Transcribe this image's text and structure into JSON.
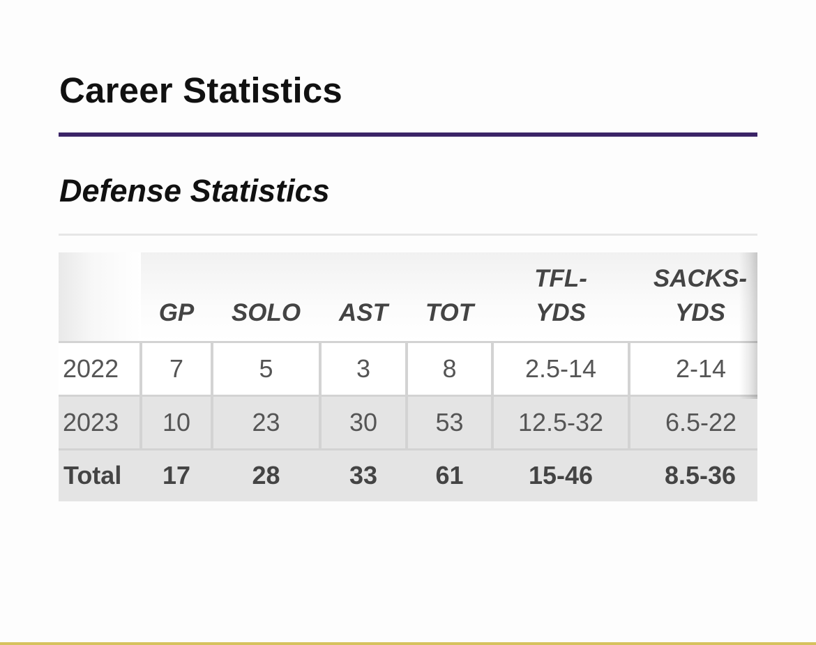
{
  "page": {
    "title": "Career Statistics",
    "accent_color": "#3b2467"
  },
  "section": {
    "title": "Defense Statistics"
  },
  "table": {
    "headers": [
      {
        "line1": "",
        "line2": ""
      },
      {
        "line1": "",
        "line2": "GP"
      },
      {
        "line1": "",
        "line2": "SOLO"
      },
      {
        "line1": "",
        "line2": "AST"
      },
      {
        "line1": "",
        "line2": "TOT"
      },
      {
        "line1": "TFL-",
        "line2": "YDS"
      },
      {
        "line1": "SACKS-",
        "line2": "YDS"
      }
    ],
    "rows": [
      [
        "2022",
        "7",
        "5",
        "3",
        "8",
        "2.5-14",
        "2-14"
      ],
      [
        "2023",
        "10",
        "23",
        "30",
        "53",
        "12.5-32",
        "6.5-22"
      ]
    ],
    "total": [
      "Total",
      "17",
      "28",
      "33",
      "61",
      "15-46",
      "8.5-36"
    ]
  }
}
